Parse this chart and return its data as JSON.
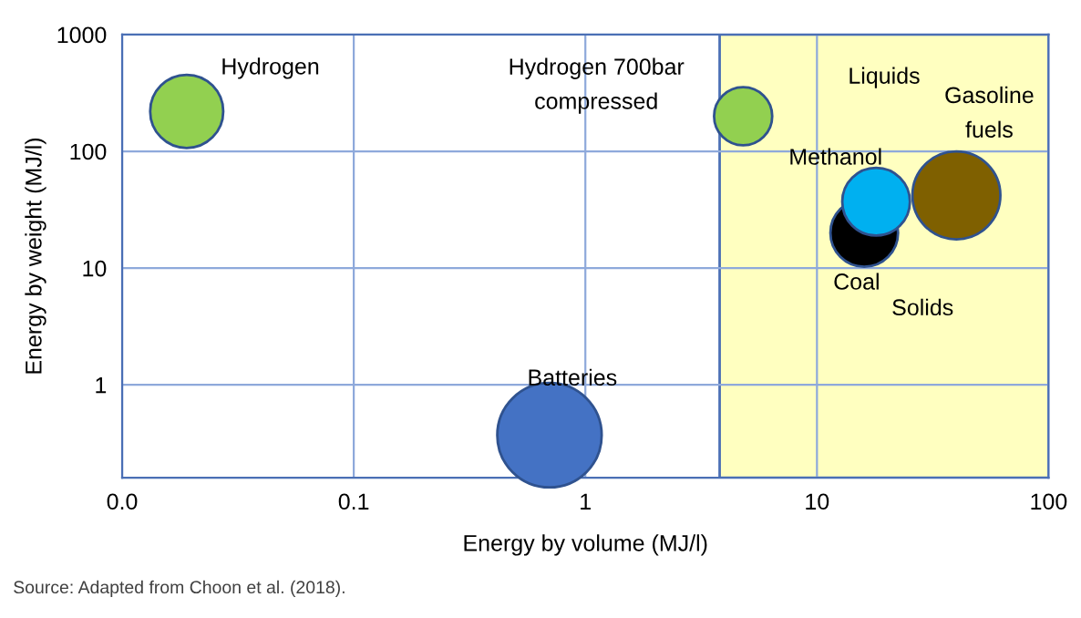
{
  "chart_data": {
    "type": "bubble",
    "xlabel": "Energy by volume (MJ/l)",
    "ylabel": "Energy by weight (MJ/l)",
    "log": "xy",
    "xlim": [
      0.01,
      100
    ],
    "ylim": [
      0.16,
      1000
    ],
    "xticks": [
      {
        "value": 0.01,
        "label": "0.0"
      },
      0.1,
      1,
      10,
      100
    ],
    "yticks": [
      1,
      10,
      100,
      1000
    ],
    "grid": true,
    "legend": false,
    "bands": [
      {
        "axis": "x",
        "from": 3.8,
        "to": 100,
        "color": "#ffffc0",
        "label": "Liquids"
      }
    ],
    "series": [
      {
        "name": "Hydrogen",
        "x": [
          0.019
        ],
        "values": [
          220
        ],
        "sizes": [
          0.49
        ],
        "color": "#92d050"
      },
      {
        "name": "Hydrogen 700bar\ncompressed",
        "x": [
          4.8
        ],
        "values": [
          200
        ],
        "sizes": [
          0.31
        ],
        "color": "#92d050"
      },
      {
        "name": "Batteries",
        "x": [
          0.7
        ],
        "values": [
          0.37
        ],
        "sizes": [
          1
        ],
        "color": "#4472c4"
      },
      {
        "name": "Gasoline\nfuels",
        "x": [
          40
        ],
        "values": [
          42
        ],
        "sizes": [
          0.71
        ],
        "color": "#7f6000"
      },
      {
        "name": "Coal",
        "x": [
          16
        ],
        "values": [
          20
        ],
        "sizes": [
          0.42
        ],
        "color": "#000000"
      },
      {
        "name": "Methanol",
        "x": [
          18
        ],
        "values": [
          37
        ],
        "sizes": [
          0.42
        ],
        "color": "#00b0f0"
      }
    ],
    "annotations": [
      "Solids",
      "Source: Adapted from Choon et al. (2018)."
    ]
  }
}
